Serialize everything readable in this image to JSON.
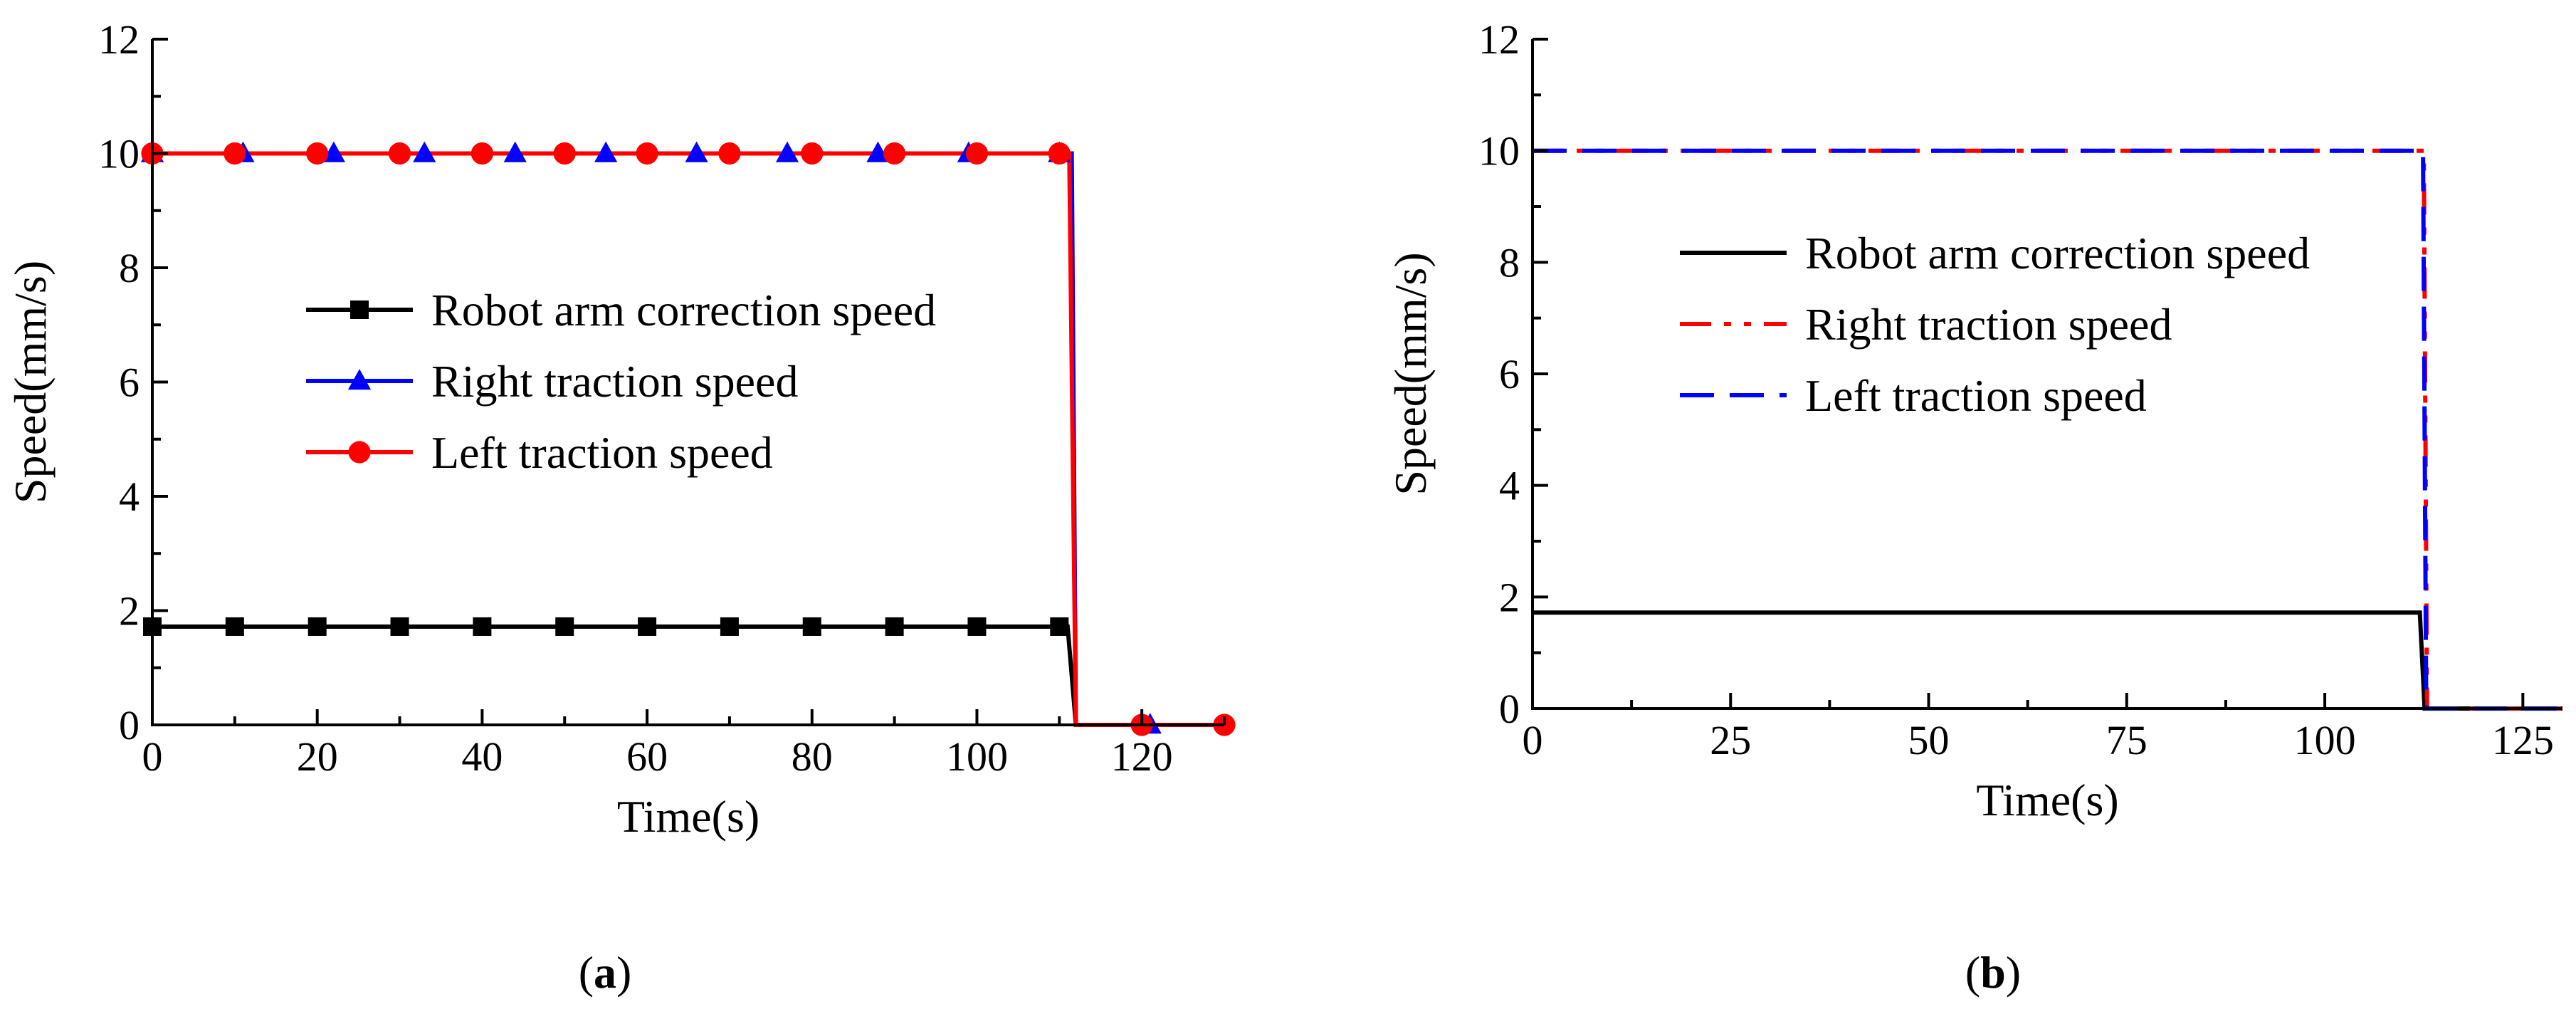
{
  "chart_data": [
    {
      "type": "line",
      "panel_label": "a",
      "xlabel": "Time(s)",
      "ylabel": "Speed(mm/s)",
      "xlim": [
        0,
        130
      ],
      "ylim": [
        0,
        12
      ],
      "xticks": [
        0,
        20,
        40,
        60,
        80,
        100,
        120
      ],
      "yticks": [
        0,
        2,
        4,
        6,
        8,
        10,
        12
      ],
      "legend_position": "center",
      "series": [
        {
          "name": "Robot arm correction speed",
          "color": "#000000",
          "marker": "square",
          "dash": "solid",
          "points": [
            [
              0,
              1.72
            ],
            [
              111,
              1.72
            ],
            [
              112,
              0
            ],
            [
              130,
              0
            ]
          ],
          "markers": [
            [
              0,
              1.72
            ],
            [
              10,
              1.72
            ],
            [
              20,
              1.72
            ],
            [
              30,
              1.72
            ],
            [
              40,
              1.72
            ],
            [
              50,
              1.72
            ],
            [
              60,
              1.72
            ],
            [
              70,
              1.72
            ],
            [
              80,
              1.72
            ],
            [
              90,
              1.72
            ],
            [
              100,
              1.72
            ],
            [
              110,
              1.72
            ]
          ]
        },
        {
          "name": "Right traction speed",
          "color": "#0000ff",
          "marker": "triangle",
          "dash": "solid",
          "points": [
            [
              0,
              10
            ],
            [
              111.5,
              10
            ],
            [
              112,
              0
            ],
            [
              130,
              0
            ]
          ],
          "markers": [
            [
              0,
              10
            ],
            [
              11,
              10
            ],
            [
              22,
              10
            ],
            [
              33,
              10
            ],
            [
              44,
              10
            ],
            [
              55,
              10
            ],
            [
              66,
              10
            ],
            [
              77,
              10
            ],
            [
              88,
              10
            ],
            [
              99,
              10
            ],
            [
              110,
              10
            ],
            [
              121,
              0
            ]
          ]
        },
        {
          "name": "Left traction speed",
          "color": "#ff0000",
          "marker": "circle",
          "dash": "solid",
          "points": [
            [
              0,
              10
            ],
            [
              111.2,
              10
            ],
            [
              112,
              0
            ],
            [
              130,
              0
            ]
          ],
          "markers": [
            [
              0,
              10
            ],
            [
              10,
              10
            ],
            [
              20,
              10
            ],
            [
              30,
              10
            ],
            [
              40,
              10
            ],
            [
              50,
              10
            ],
            [
              60,
              10
            ],
            [
              70,
              10
            ],
            [
              80,
              10
            ],
            [
              90,
              10
            ],
            [
              100,
              10
            ],
            [
              110,
              10
            ],
            [
              120,
              0
            ],
            [
              130,
              0
            ]
          ]
        }
      ]
    },
    {
      "type": "line",
      "panel_label": "b",
      "xlabel": "Time(s)",
      "ylabel": "Speed(mm/s)",
      "xlim": [
        0,
        130
      ],
      "ylim": [
        0,
        12
      ],
      "xticks": [
        0,
        25,
        50,
        75,
        100,
        125
      ],
      "yticks": [
        0,
        2,
        4,
        6,
        8,
        10,
        12
      ],
      "legend_position": "center",
      "series": [
        {
          "name": "Robot arm correction speed",
          "color": "#000000",
          "marker": "none",
          "dash": "solid",
          "points": [
            [
              0,
              1.72
            ],
            [
              112,
              1.72
            ],
            [
              112.6,
              0
            ],
            [
              130,
              0
            ]
          ],
          "markers": []
        },
        {
          "name": "Right traction speed",
          "color": "#ff0000",
          "marker": "none",
          "dash": "dashdotdot",
          "points": [
            [
              0,
              10
            ],
            [
              112.5,
              10
            ],
            [
              112.9,
              0
            ],
            [
              130,
              0
            ]
          ],
          "markers": []
        },
        {
          "name": "Left traction speed",
          "color": "#0000ff",
          "marker": "none",
          "dash": "dash",
          "points": [
            [
              0,
              10
            ],
            [
              112.4,
              10
            ],
            [
              112.8,
              0
            ],
            [
              130,
              0
            ]
          ],
          "markers": []
        }
      ]
    }
  ]
}
